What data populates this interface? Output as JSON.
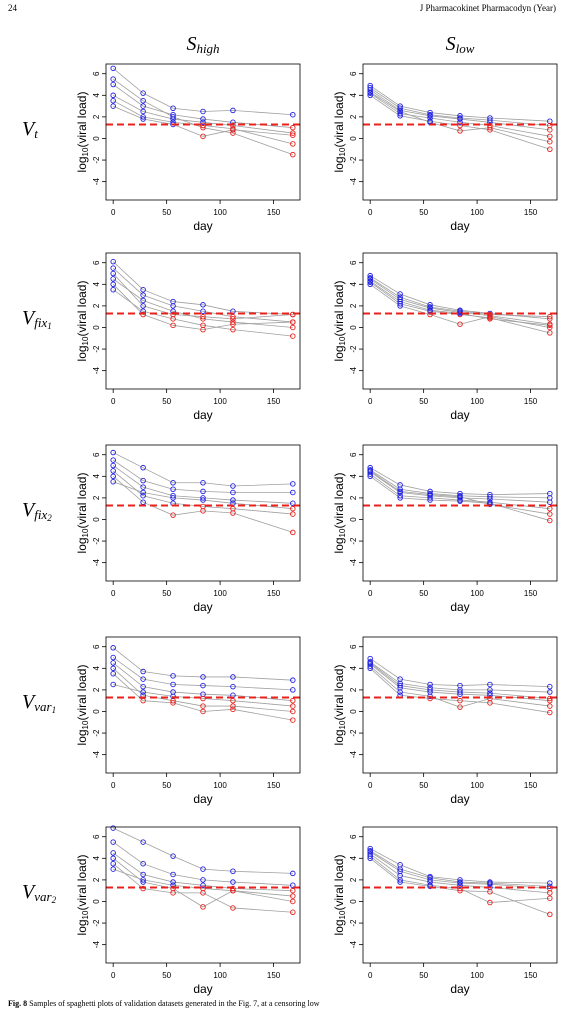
{
  "header": {
    "page": "24",
    "journal": "J Pharmacokinet Pharmacodyn (Year)"
  },
  "columns": [
    {
      "main": "S",
      "sub": "high"
    },
    {
      "main": "S",
      "sub": "low"
    }
  ],
  "rows": [
    {
      "main": "V",
      "sub": "t"
    },
    {
      "main": "V",
      "sub": "fix",
      "subsub": "1"
    },
    {
      "main": "V",
      "sub": "fix",
      "subsub": "2"
    },
    {
      "main": "V",
      "sub": "var",
      "subsub": "1"
    },
    {
      "main": "V",
      "sub": "var",
      "subsub": "2"
    }
  ],
  "caption": {
    "label": "Fig. 8",
    "text": "Samples of spaghetti plots of validation datasets generated in the Fig. 7, at a censoring low"
  },
  "chart_data": [
    {
      "type": "line",
      "xlabel": "day",
      "ylabel": {
        "base": "log",
        "sub": "10",
        "rest": "(viral load)"
      },
      "x": [
        0,
        28,
        56,
        84,
        112,
        168
      ],
      "xlim": [
        -6.72,
        174.72
      ],
      "xticks": [
        0,
        50,
        100,
        150
      ],
      "ylim": [
        -5.7,
        6.9
      ],
      "yticks": [
        -4,
        -2,
        0,
        2,
        4,
        6
      ],
      "hline": 1.3,
      "hline_color": "#e8211c",
      "point_colors": {
        "above": "#1f1fe6",
        "below": "#e8211c"
      },
      "line_color": "#a0a0a0",
      "series": [
        {
          "values": [
            6.5,
            4.2,
            2.8,
            2.5,
            2.6,
            2.2
          ]
        },
        {
          "values": [
            5.0,
            3.0,
            2.2,
            1.8,
            1.5,
            1.0
          ]
        },
        {
          "values": [
            4.0,
            2.5,
            1.8,
            1.5,
            1.2,
            0.5
          ]
        },
        {
          "values": [
            3.5,
            2.0,
            1.5,
            1.2,
            0.9,
            -0.5
          ]
        },
        {
          "values": [
            5.5,
            3.5,
            2.0,
            1.0,
            0.5,
            -1.5
          ]
        },
        {
          "values": [
            3.0,
            1.8,
            1.3,
            0.2,
            0.8,
            0.3
          ]
        }
      ]
    },
    {
      "type": "line",
      "xlabel": "day",
      "ylabel": {
        "base": "log",
        "sub": "10",
        "rest": "(viral load)"
      },
      "x": [
        0,
        28,
        56,
        84,
        112,
        168
      ],
      "xlim": [
        -6.72,
        174.72
      ],
      "xticks": [
        0,
        50,
        100,
        150
      ],
      "ylim": [
        -5.7,
        6.9
      ],
      "yticks": [
        -4,
        -2,
        0,
        2,
        4,
        6
      ],
      "hline": 1.3,
      "hline_color": "#e8211c",
      "point_colors": {
        "above": "#1f1fe6",
        "below": "#e8211c"
      },
      "line_color": "#a0a0a0",
      "series": [
        {
          "values": [
            4.9,
            3.0,
            2.4,
            2.1,
            1.9,
            1.6
          ]
        },
        {
          "values": [
            4.5,
            2.6,
            2.1,
            1.8,
            1.5,
            0.8
          ]
        },
        {
          "values": [
            4.2,
            2.3,
            1.9,
            1.5,
            1.2,
            0.2
          ]
        },
        {
          "values": [
            4.0,
            2.1,
            1.6,
            1.2,
            0.8,
            -1.0
          ]
        },
        {
          "values": [
            4.7,
            2.8,
            2.2,
            1.9,
            1.7,
            1.2
          ]
        },
        {
          "values": [
            4.3,
            2.5,
            1.5,
            0.7,
            1.0,
            -0.3
          ]
        }
      ]
    },
    {
      "type": "line",
      "xlabel": "day",
      "ylabel": {
        "base": "log",
        "sub": "10",
        "rest": "(viral load)"
      },
      "x": [
        0,
        28,
        56,
        84,
        112,
        168
      ],
      "xlim": [
        -6.72,
        174.72
      ],
      "xticks": [
        0,
        50,
        100,
        150
      ],
      "ylim": [
        -5.7,
        6.9
      ],
      "yticks": [
        -4,
        -2,
        0,
        2,
        4,
        6
      ],
      "hline": 1.3,
      "hline_color": "#e8211c",
      "point_colors": {
        "above": "#1f1fe6",
        "below": "#e8211c"
      },
      "line_color": "#a0a0a0",
      "series": [
        {
          "values": [
            6.1,
            3.5,
            2.4,
            2.1,
            1.5,
            1.2
          ]
        },
        {
          "values": [
            5.5,
            3.0,
            2.0,
            1.5,
            1.0,
            0.5
          ]
        },
        {
          "values": [
            4.5,
            2.5,
            1.5,
            0.8,
            0.5,
            0
          ]
        },
        {
          "values": [
            3.5,
            1.5,
            0.8,
            0.2,
            -0.2,
            -0.8
          ]
        },
        {
          "values": [
            5.0,
            2.0,
            1.2,
            1.0,
            0.8,
            1.2
          ]
        },
        {
          "values": [
            4.0,
            1.2,
            0.2,
            -0.2,
            0.3,
            0.5
          ]
        }
      ]
    },
    {
      "type": "line",
      "xlabel": "day",
      "ylabel": {
        "base": "log",
        "sub": "10",
        "rest": "(viral load)"
      },
      "x": [
        0,
        28,
        56,
        84,
        112,
        168
      ],
      "xlim": [
        -6.72,
        174.72
      ],
      "xticks": [
        0,
        50,
        100,
        150
      ],
      "ylim": [
        -5.7,
        6.9
      ],
      "yticks": [
        -4,
        -2,
        0,
        2,
        4,
        6
      ],
      "hline": 1.3,
      "hline_color": "#e8211c",
      "point_colors": {
        "above": "#1f1fe6",
        "below": "#e8211c"
      },
      "line_color": "#a0a0a0",
      "series": [
        {
          "values": [
            4.8,
            3.1,
            2.1,
            1.6,
            1.3,
            0.8
          ]
        },
        {
          "values": [
            4.5,
            2.6,
            1.8,
            1.4,
            1.1,
            0.3
          ]
        },
        {
          "values": [
            4.2,
            2.2,
            1.5,
            1.2,
            0.9,
            -0.5
          ]
        },
        {
          "values": [
            4.0,
            2.0,
            1.2,
            0.3,
            1.0,
            0
          ]
        },
        {
          "values": [
            4.6,
            2.8,
            1.9,
            1.5,
            1.2,
            1.0
          ]
        },
        {
          "values": [
            4.3,
            2.4,
            1.6,
            1.3,
            0.8,
            0.2
          ]
        }
      ]
    },
    {
      "type": "line",
      "xlabel": "day",
      "ylabel": {
        "base": "log",
        "sub": "10",
        "rest": "(viral load)"
      },
      "x": [
        0,
        28,
        56,
        84,
        112,
        168
      ],
      "xlim": [
        -6.72,
        174.72
      ],
      "xticks": [
        0,
        50,
        100,
        150
      ],
      "ylim": [
        -5.7,
        6.9
      ],
      "yticks": [
        -4,
        -2,
        0,
        2,
        4,
        6
      ],
      "hline": 1.3,
      "hline_color": "#e8211c",
      "point_colors": {
        "above": "#1f1fe6",
        "below": "#e8211c"
      },
      "line_color": "#a0a0a0",
      "series": [
        {
          "values": [
            6.2,
            4.8,
            3.4,
            3.4,
            3.1,
            3.3
          ]
        },
        {
          "values": [
            5.5,
            3.6,
            2.8,
            2.6,
            2.5,
            2.5
          ]
        },
        {
          "values": [
            5.0,
            3.0,
            2.2,
            2.0,
            1.8,
            1.5
          ]
        },
        {
          "values": [
            4.5,
            2.2,
            1.5,
            1.2,
            1.0,
            0.5
          ]
        },
        {
          "values": [
            4.0,
            1.6,
            0.4,
            0.8,
            0.6,
            -1.2
          ]
        },
        {
          "values": [
            3.5,
            2.5,
            2.0,
            1.8,
            1.5,
            1.0
          ]
        }
      ]
    },
    {
      "type": "line",
      "xlabel": "day",
      "ylabel": {
        "base": "log",
        "sub": "10",
        "rest": "(viral load)"
      },
      "x": [
        0,
        28,
        56,
        84,
        112,
        168
      ],
      "xlim": [
        -6.72,
        174.72
      ],
      "xticks": [
        0,
        50,
        100,
        150
      ],
      "ylim": [
        -5.7,
        6.9
      ],
      "yticks": [
        -4,
        -2,
        0,
        2,
        4,
        6
      ],
      "hline": 1.3,
      "hline_color": "#e8211c",
      "point_colors": {
        "above": "#1f1fe6",
        "below": "#e8211c"
      },
      "line_color": "#a0a0a0",
      "series": [
        {
          "values": [
            4.8,
            3.2,
            2.6,
            2.4,
            2.3,
            2.4
          ]
        },
        {
          "values": [
            4.6,
            2.8,
            2.4,
            2.2,
            2.1,
            2.0
          ]
        },
        {
          "values": [
            4.4,
            2.5,
            2.2,
            2.0,
            1.9,
            1.6
          ]
        },
        {
          "values": [
            4.2,
            2.2,
            2.0,
            1.8,
            1.6,
            1.0
          ]
        },
        {
          "values": [
            4.0,
            2.0,
            1.8,
            1.7,
            1.5,
            -0.1
          ]
        },
        {
          "values": [
            4.5,
            2.6,
            2.3,
            2.1,
            1.4,
            0.5
          ]
        }
      ]
    },
    {
      "type": "line",
      "xlabel": "day",
      "ylabel": {
        "base": "log",
        "sub": "10",
        "rest": "(viral load)"
      },
      "x": [
        0,
        28,
        56,
        84,
        112,
        168
      ],
      "xlim": [
        -6.72,
        174.72
      ],
      "xticks": [
        0,
        50,
        100,
        150
      ],
      "ylim": [
        -5.7,
        6.9
      ],
      "yticks": [
        -4,
        -2,
        0,
        2,
        4,
        6
      ],
      "hline": 1.3,
      "hline_color": "#e8211c",
      "point_colors": {
        "above": "#1f1fe6",
        "below": "#e8211c"
      },
      "line_color": "#a0a0a0",
      "series": [
        {
          "values": [
            5.9,
            3.7,
            3.3,
            3.2,
            3.2,
            2.9
          ]
        },
        {
          "values": [
            5.0,
            3.0,
            2.5,
            2.4,
            2.3,
            2.0
          ]
        },
        {
          "values": [
            4.5,
            2.3,
            1.8,
            1.6,
            1.5,
            1.0
          ]
        },
        {
          "values": [
            4.0,
            1.5,
            1.0,
            0.5,
            0.5,
            0
          ]
        },
        {
          "values": [
            3.5,
            1.0,
            0.8,
            0,
            0.2,
            -0.8
          ]
        },
        {
          "values": [
            2.5,
            1.8,
            1.4,
            1.2,
            1.0,
            0.5
          ]
        }
      ]
    },
    {
      "type": "line",
      "xlabel": "day",
      "ylabel": {
        "base": "log",
        "sub": "10",
        "rest": "(viral load)"
      },
      "x": [
        0,
        28,
        56,
        84,
        112,
        168
      ],
      "xlim": [
        -6.72,
        174.72
      ],
      "xticks": [
        0,
        50,
        100,
        150
      ],
      "ylim": [
        -5.7,
        6.9
      ],
      "yticks": [
        -4,
        -2,
        0,
        2,
        4,
        6
      ],
      "hline": 1.3,
      "hline_color": "#e8211c",
      "point_colors": {
        "above": "#1f1fe6",
        "below": "#e8211c"
      },
      "line_color": "#a0a0a0",
      "series": [
        {
          "values": [
            4.9,
            3.0,
            2.5,
            2.4,
            2.5,
            2.3
          ]
        },
        {
          "values": [
            4.6,
            2.6,
            2.2,
            2.0,
            2.0,
            1.8
          ]
        },
        {
          "values": [
            4.4,
            2.2,
            1.8,
            1.6,
            1.5,
            1.0
          ]
        },
        {
          "values": [
            4.2,
            1.8,
            1.4,
            0.4,
            1.2,
            0.5
          ]
        },
        {
          "values": [
            4.0,
            1.5,
            1.2,
            1.0,
            0.8,
            -0.1
          ]
        },
        {
          "values": [
            4.5,
            2.4,
            2.0,
            1.8,
            1.7,
            1.2
          ]
        }
      ]
    },
    {
      "type": "line",
      "xlabel": "day",
      "ylabel": {
        "base": "log",
        "sub": "10",
        "rest": "(viral load)"
      },
      "x": [
        0,
        28,
        56,
        84,
        112,
        168
      ],
      "xlim": [
        -6.72,
        174.72
      ],
      "xticks": [
        0,
        50,
        100,
        150
      ],
      "ylim": [
        -5.7,
        6.9
      ],
      "yticks": [
        -4,
        -2,
        0,
        2,
        4,
        6
      ],
      "hline": 1.3,
      "hline_color": "#e8211c",
      "point_colors": {
        "above": "#1f1fe6",
        "below": "#e8211c"
      },
      "line_color": "#a0a0a0",
      "series": [
        {
          "values": [
            6.8,
            5.5,
            4.2,
            3.0,
            2.8,
            2.6
          ]
        },
        {
          "values": [
            5.5,
            3.5,
            2.5,
            2.0,
            1.8,
            1.5
          ]
        },
        {
          "values": [
            4.5,
            2.5,
            1.8,
            1.5,
            1.2,
            1.0
          ]
        },
        {
          "values": [
            4.0,
            1.8,
            1.2,
            -0.5,
            1.0,
            0.5
          ]
        },
        {
          "values": [
            3.5,
            1.2,
            0.8,
            0.8,
            -0.6,
            -1.0
          ]
        },
        {
          "values": [
            3.0,
            2.0,
            1.5,
            1.2,
            1.0,
            0
          ]
        }
      ]
    },
    {
      "type": "line",
      "xlabel": "day",
      "ylabel": {
        "base": "log",
        "sub": "10",
        "rest": "(viral load)"
      },
      "x": [
        0,
        28,
        56,
        84,
        112,
        168
      ],
      "xlim": [
        -6.72,
        174.72
      ],
      "xticks": [
        0,
        50,
        100,
        150
      ],
      "ylim": [
        -5.7,
        6.9
      ],
      "yticks": [
        -4,
        -2,
        0,
        2,
        4,
        6
      ],
      "hline": 1.3,
      "hline_color": "#e8211c",
      "point_colors": {
        "above": "#1f1fe6",
        "below": "#e8211c"
      },
      "line_color": "#a0a0a0",
      "series": [
        {
          "values": [
            4.9,
            3.4,
            2.3,
            2.0,
            1.8,
            1.7
          ]
        },
        {
          "values": [
            4.6,
            2.8,
            2.0,
            1.7,
            1.6,
            1.2
          ]
        },
        {
          "values": [
            4.4,
            2.4,
            1.8,
            1.5,
            1.3,
            0.8
          ]
        },
        {
          "values": [
            4.2,
            2.0,
            1.5,
            1.2,
            -0.1,
            0.3
          ]
        },
        {
          "values": [
            4.0,
            1.8,
            1.4,
            1.0,
            0.9,
            -1.2
          ]
        },
        {
          "values": [
            4.7,
            3.0,
            2.2,
            1.8,
            1.7,
            1.4
          ]
        }
      ]
    }
  ]
}
